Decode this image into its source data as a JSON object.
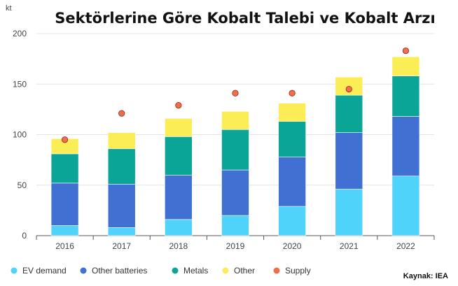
{
  "chart_data": {
    "type": "bar",
    "stacked": true,
    "title": "Sektörlerine Göre Kobalt Talebi ve Kobalt Arzı",
    "unit": "kt",
    "categories": [
      "2016",
      "2017",
      "2018",
      "2019",
      "2020",
      "2021",
      "2022"
    ],
    "ylim": [
      0,
      200
    ],
    "yticks": [
      "0",
      "50",
      "100",
      "150",
      "200"
    ],
    "grid": true,
    "legend_position": "bottom-left",
    "series": [
      {
        "name": "EV demand",
        "color": "#4fd3fb",
        "values": [
          10,
          8,
          16,
          20,
          29,
          46,
          59
        ]
      },
      {
        "name": "Other batteries",
        "color": "#3f70d2",
        "values": [
          42,
          43,
          44,
          45,
          49,
          56,
          59
        ]
      },
      {
        "name": "Metals",
        "color": "#0ba597",
        "values": [
          29,
          35,
          38,
          40,
          35,
          37,
          40
        ]
      },
      {
        "name": "Other",
        "color": "#fbed56",
        "values": [
          15,
          16,
          18,
          18,
          18,
          18,
          19
        ]
      }
    ],
    "supply": {
      "name": "Supply",
      "color": "#f36c4e",
      "values": [
        95,
        121,
        129,
        141,
        141,
        145,
        183
      ]
    },
    "source": "Kaynak: IEA"
  }
}
